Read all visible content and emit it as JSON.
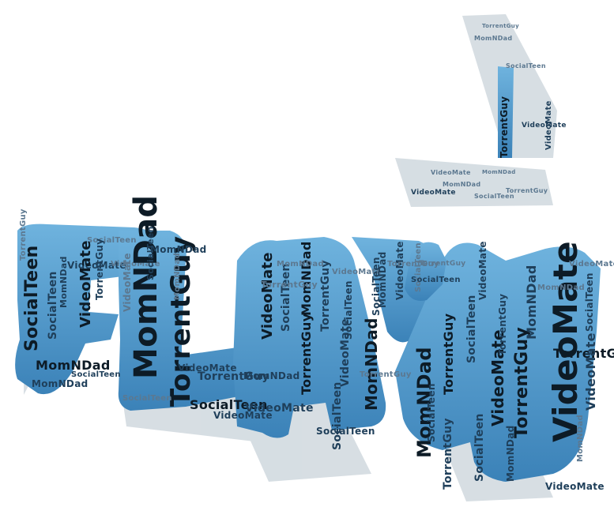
{
  "words": [
    "VideoMate",
    "MomNDad",
    "TorrentGuy",
    "SocialTeen"
  ],
  "colors": {
    "background": "#ffffff",
    "fill": "#6fb3de",
    "fill_dark": "#3b82b8",
    "shadow": "#c9d3da",
    "text_dark": "#0d1b26",
    "text_mid": "#1f3f5a",
    "text_light": "#5c7890"
  }
}
